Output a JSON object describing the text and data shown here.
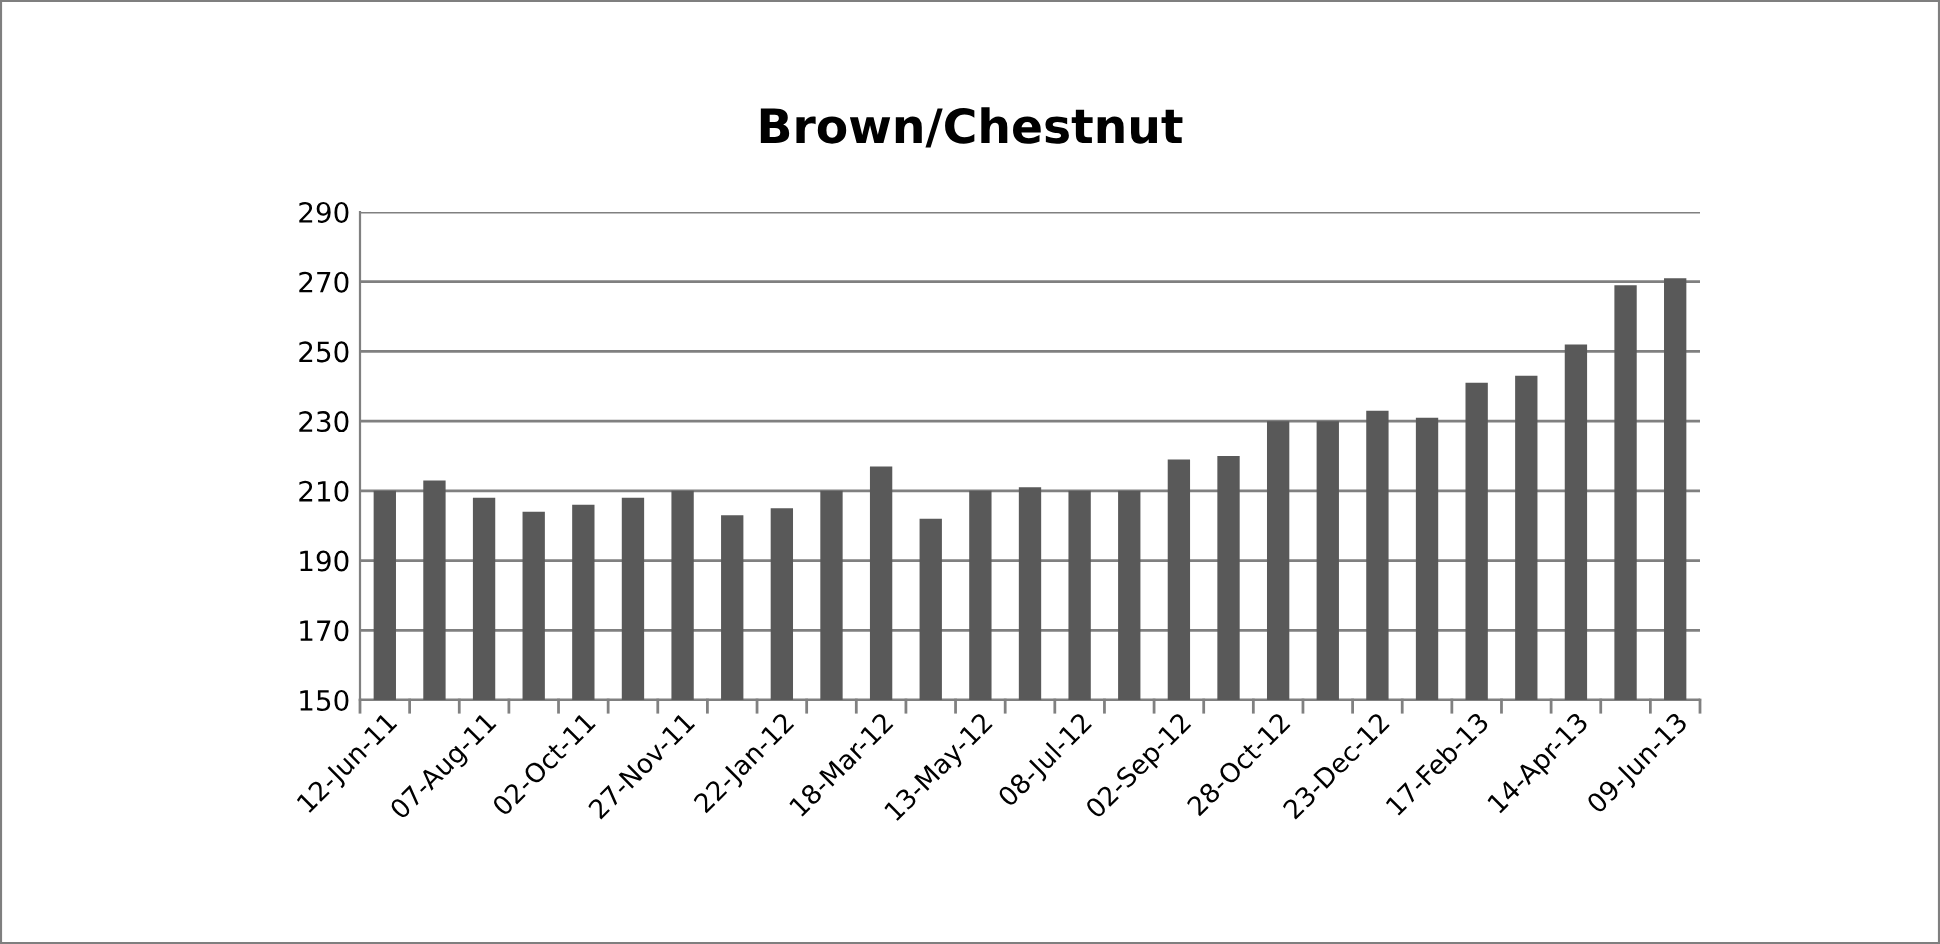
{
  "chart_data": {
    "type": "bar",
    "title": "Brown/Chestnut",
    "categories": [
      "12-Jun-11",
      null,
      "07-Aug-11",
      null,
      "02-Oct-11",
      null,
      "27-Nov-11",
      null,
      "22-Jan-12",
      null,
      "18-Mar-12",
      null,
      "13-May-12",
      null,
      "08-Jul-12",
      null,
      "02-Sep-12",
      null,
      "28-Oct-12",
      null,
      "23-Dec-12",
      null,
      "17-Feb-13",
      null,
      "14-Apr-13",
      null,
      "09-Jun-13"
    ],
    "values": [
      210,
      213,
      208,
      204,
      206,
      208,
      210,
      203,
      205,
      210,
      217,
      202,
      210,
      211,
      210,
      210,
      219,
      220,
      230,
      230,
      233,
      231,
      241,
      243,
      252,
      269,
      271
    ],
    "color": "#595959",
    "ylim": [
      150,
      290
    ],
    "yticks": [
      150,
      170,
      190,
      210,
      230,
      250,
      270,
      290
    ],
    "grid": "y",
    "legend": false
  }
}
